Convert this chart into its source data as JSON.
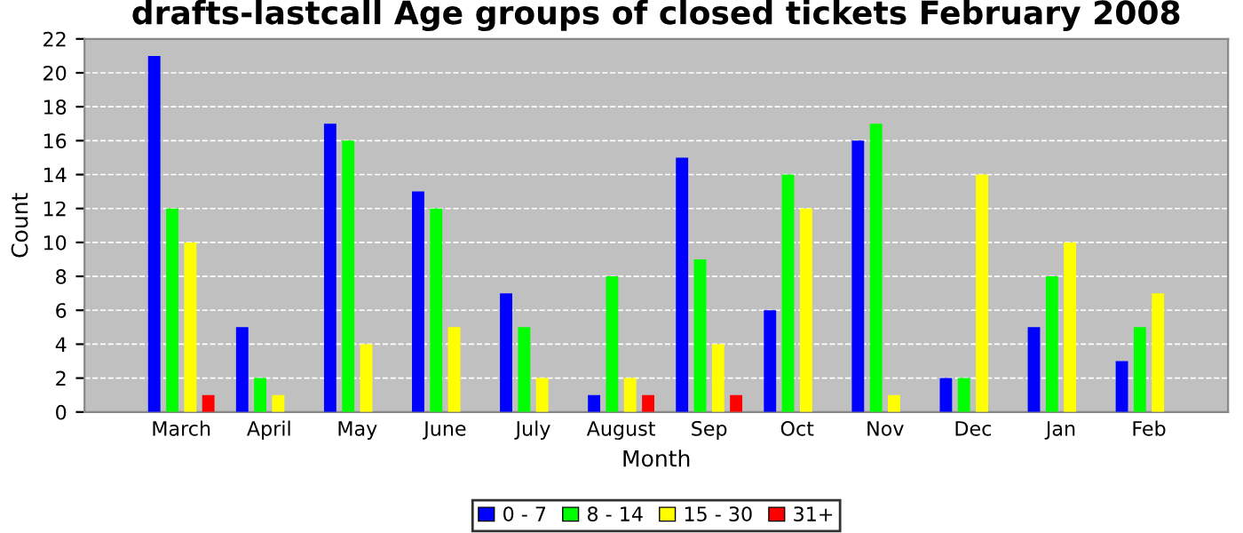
{
  "chart_data": {
    "type": "bar",
    "title": "drafts-lastcall Age groups of closed tickets February 2008",
    "xlabel": "Month",
    "ylabel": "Count",
    "categories": [
      "March",
      "April",
      "May",
      "June",
      "July",
      "August",
      "Sep",
      "Oct",
      "Nov",
      "Dec",
      "Jan",
      "Feb"
    ],
    "series": [
      {
        "name": "0 - 7",
        "color": "#0000ff",
        "values": [
          21,
          5,
          17,
          13,
          7,
          1,
          15,
          6,
          16,
          2,
          5,
          3
        ]
      },
      {
        "name": "8 - 14",
        "color": "#00ff00",
        "values": [
          12,
          2,
          16,
          12,
          5,
          8,
          9,
          14,
          17,
          2,
          8,
          5
        ]
      },
      {
        "name": "15 - 30",
        "color": "#ffff00",
        "values": [
          10,
          1,
          4,
          5,
          2,
          2,
          4,
          12,
          1,
          14,
          10,
          7
        ]
      },
      {
        "name": "31+",
        "color": "#ff0000",
        "values": [
          1,
          0,
          0,
          0,
          0,
          1,
          1,
          0,
          0,
          0,
          0,
          0
        ]
      }
    ],
    "ylim": [
      0,
      22
    ],
    "yticks": [
      0,
      2,
      4,
      6,
      8,
      10,
      12,
      14,
      16,
      18,
      20,
      22
    ],
    "grid": "y",
    "legend": "bottom"
  }
}
